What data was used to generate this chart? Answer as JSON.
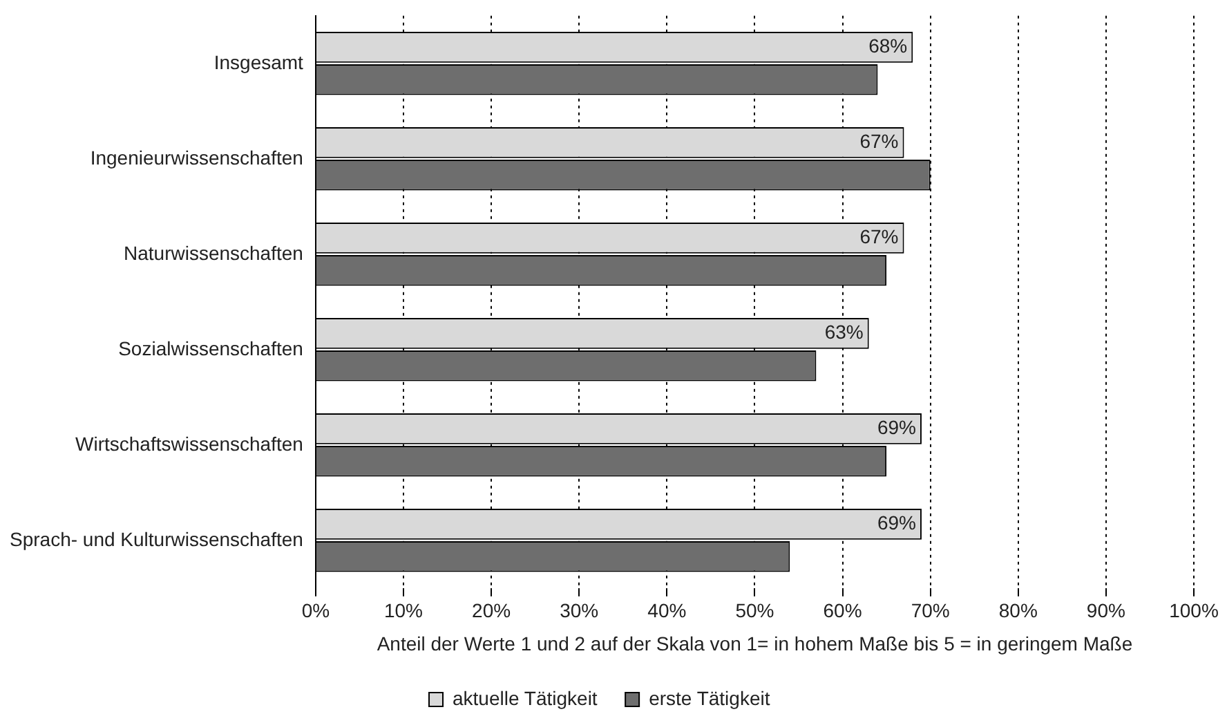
{
  "chart_data": {
    "type": "bar",
    "orientation": "horizontal",
    "xlabel": "Anteil der Werte 1 und 2 auf der Skala von 1= in hohem Maße bis 5 = in geringem Maße",
    "categories": [
      "Insgesamt",
      "Ingenieurwissenschaften",
      "Naturwissenschaften",
      "Sozialwissenschaften",
      "Wirtschaftswissenschaften",
      "Sprach- und Kulturwissenschaften"
    ],
    "series": [
      {
        "name": "aktuelle Tätigkeit",
        "color": "#d9d9d9",
        "values": [
          68,
          67,
          67,
          63,
          69,
          69
        ],
        "value_labels": [
          "68%",
          "67%",
          "67%",
          "63%",
          "69%",
          "69%"
        ]
      },
      {
        "name": "erste Tätigkeit",
        "color": "#6e6e6e",
        "values": [
          64,
          70,
          65,
          57,
          65,
          54
        ]
      }
    ],
    "xlim": [
      0,
      100
    ],
    "xticks": [
      {
        "value": 0,
        "label": "0%"
      },
      {
        "value": 10,
        "label": "10%"
      },
      {
        "value": 20,
        "label": "20%"
      },
      {
        "value": 30,
        "label": "30%"
      },
      {
        "value": 40,
        "label": "40%"
      },
      {
        "value": 50,
        "label": "50%"
      },
      {
        "value": 60,
        "label": "60%"
      },
      {
        "value": 70,
        "label": "70%"
      },
      {
        "value": 80,
        "label": "80%"
      },
      {
        "value": 90,
        "label": "90%"
      },
      {
        "value": 100,
        "label": "100%"
      }
    ],
    "grid": "x",
    "legend": "bottom"
  }
}
